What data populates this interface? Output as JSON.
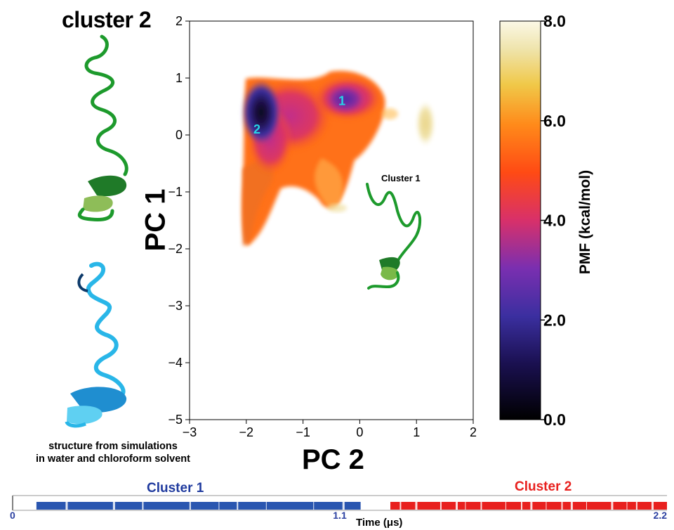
{
  "figure": {
    "left_title": "cluster 2",
    "caption_line1": "structure from simulations",
    "caption_line2": "in water and chloroform solvent",
    "inset_title": "Cluster 1"
  },
  "colors": {
    "helix_green": "#1d9a2c",
    "helix_cyan": "#29b6e8",
    "marker_label": "#27d4e6",
    "timeline_blue": "#2a56b0",
    "timeline_red": "#e8201e"
  },
  "chart_data": [
    {
      "type": "heatmap",
      "title": "",
      "xlabel": "PC 2",
      "ylabel": "PC 1",
      "xlim": [
        -3,
        2
      ],
      "ylim": [
        -5,
        2
      ],
      "xticks": [
        "−3",
        "−2",
        "−1",
        "0",
        "1",
        "2"
      ],
      "yticks": [
        "2",
        "1",
        "0",
        "−1",
        "−2",
        "−3",
        "−4",
        "−5"
      ],
      "grid": false,
      "colorbar": {
        "label": "PMF (kcal/mol)",
        "range": [
          0,
          8
        ],
        "ticks": [
          "8.0",
          "6.0",
          "4.0",
          "2.0",
          "0.0"
        ],
        "colormap": [
          "#000000",
          "#3b2fa0",
          "#7a2fb0",
          "#d8306a",
          "#ff6a10",
          "#ffc040",
          "#f2e6a0",
          "#fbf8e6"
        ]
      },
      "minima": [
        {
          "label": "1",
          "x": -0.3,
          "y": 0.6
        },
        {
          "label": "2",
          "x": -1.8,
          "y": 0.1
        }
      ]
    },
    {
      "type": "timeline",
      "xlabel": "Time (μs)",
      "xticks": [
        "0",
        "1.1",
        "2.2"
      ],
      "xlim": [
        0,
        2.2
      ],
      "series": [
        {
          "name": "Cluster 1",
          "color": "#2a56b0",
          "start": 0.08,
          "end": 1.17
        },
        {
          "name": "Cluster 2",
          "color": "#e8201e",
          "start": 1.27,
          "end": 2.2
        }
      ]
    }
  ]
}
